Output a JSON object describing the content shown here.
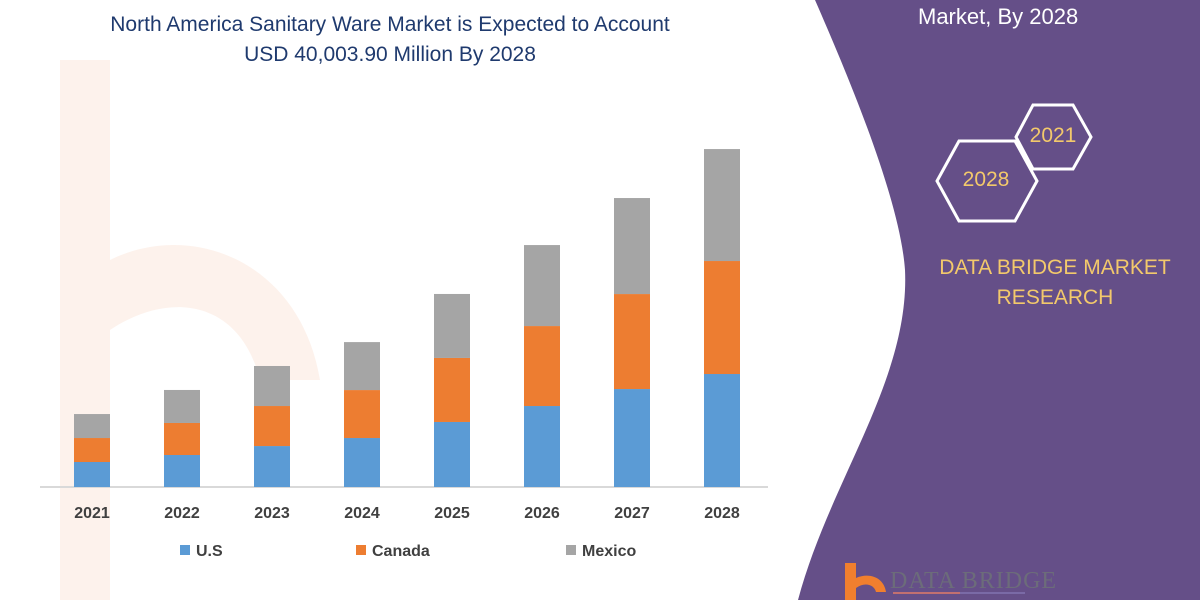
{
  "header": {
    "title_line1": "North America Sanitary Ware Market is Expected to Account",
    "title_line2": "USD 40,003.90 Million By 2028"
  },
  "side_panel": {
    "heading_fragment": "Market, By 2028",
    "hex_years": [
      "2021",
      "2028"
    ],
    "brand": "DATA BRIDGE MARKET RESEARCH",
    "brand_line1": "DATA BRIDGE MARKET",
    "brand_line2": "RESEARCH",
    "logo_text": "DATA BRIDGE",
    "panel_color": "#654f88",
    "accent_color": "#f3c96b"
  },
  "chart_data": {
    "type": "bar",
    "stacked": true,
    "title": "North America Sanitary Ware Market is Expected to Account USD 40,003.90 Million By 2028",
    "categories": [
      "2021",
      "2022",
      "2023",
      "2024",
      "2025",
      "2026",
      "2027",
      "2028"
    ],
    "series": [
      {
        "name": "U.S",
        "color": "#5b9bd5",
        "values": [
          2960,
          3790,
          4850,
          5800,
          7700,
          9590,
          11600,
          13380
        ]
      },
      {
        "name": "Canada",
        "color": "#ed7d31",
        "values": [
          2840,
          3790,
          4740,
          5680,
          7580,
          9470,
          11250,
          13380
        ]
      },
      {
        "name": "Mexico",
        "color": "#a5a5a5",
        "values": [
          2840,
          3910,
          4740,
          5680,
          7580,
          9590,
          11370,
          13260
        ]
      }
    ],
    "xlabel": "",
    "ylabel": "",
    "ylim": [
      0,
      45000
    ],
    "grid": false,
    "legend": "bottom"
  }
}
